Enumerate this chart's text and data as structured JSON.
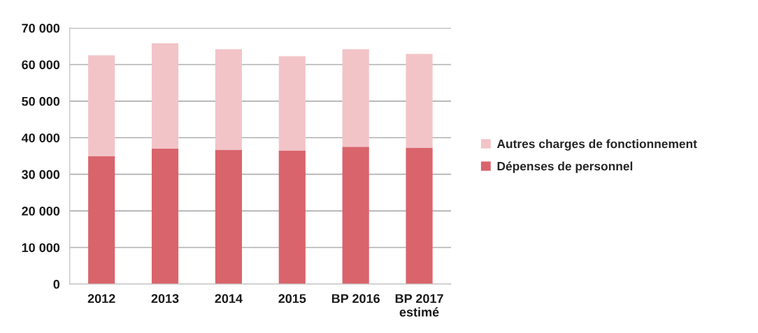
{
  "chart_data": {
    "type": "bar",
    "stacked": true,
    "categories": [
      "2012",
      "2013",
      "2014",
      "2015",
      "BP 2016",
      "BP 2017\nestimé"
    ],
    "series": [
      {
        "name": "Dépenses de personnel",
        "color": "#d9646c",
        "values": [
          35000,
          37000,
          36700,
          36500,
          37500,
          37300
        ]
      },
      {
        "name": "Autres charges de fonctionnement",
        "color": "#f2c4c8",
        "values": [
          27500,
          28800,
          27500,
          25800,
          26700,
          25600
        ]
      }
    ],
    "ylim": [
      0,
      70000
    ],
    "yticks": [
      {
        "value": 0,
        "label": "0"
      },
      {
        "value": 10000,
        "label": "10 000"
      },
      {
        "value": 20000,
        "label": "20 000"
      },
      {
        "value": 30000,
        "label": "30 000"
      },
      {
        "value": 40000,
        "label": "40 000"
      },
      {
        "value": 50000,
        "label": "50 000"
      },
      {
        "value": 60000,
        "label": "60 000"
      },
      {
        "value": 70000,
        "label": "70 000"
      }
    ],
    "grid": "y",
    "legend": "right"
  }
}
